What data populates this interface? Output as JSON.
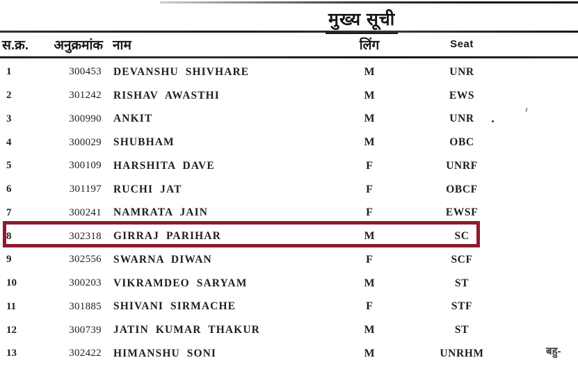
{
  "page": {
    "title": "मुख्य सूची",
    "partial_note": "बहु-"
  },
  "table": {
    "columns": [
      {
        "key": "sno",
        "label": "स.क्र."
      },
      {
        "key": "roll",
        "label": "अनुक्रमांक"
      },
      {
        "key": "name",
        "label": "नाम"
      },
      {
        "key": "gender",
        "label": "लिंग"
      },
      {
        "key": "seat",
        "label": "Seat"
      }
    ],
    "highlight_color": "#8e1c2e",
    "rows": [
      {
        "sno": "1",
        "roll": "300453",
        "name": "DEVANSHU SHIVHARE",
        "gender": "M",
        "seat": "UNR",
        "highlighted": false
      },
      {
        "sno": "2",
        "roll": "301242",
        "name": "RISHAV AWASTHI",
        "gender": "M",
        "seat": "EWS",
        "highlighted": false
      },
      {
        "sno": "3",
        "roll": "300990",
        "name": "ANKIT",
        "gender": "M",
        "seat": "UNR",
        "highlighted": false
      },
      {
        "sno": "4",
        "roll": "300029",
        "name": "SHUBHAM",
        "gender": "M",
        "seat": "OBC",
        "highlighted": false
      },
      {
        "sno": "5",
        "roll": "300109",
        "name": "HARSHITA DAVE",
        "gender": "F",
        "seat": "UNRF",
        "highlighted": false
      },
      {
        "sno": "6",
        "roll": "301197",
        "name": "RUCHI JAT",
        "gender": "F",
        "seat": "OBCF",
        "highlighted": false
      },
      {
        "sno": "7",
        "roll": "300241",
        "name": "NAMRATA JAIN",
        "gender": "F",
        "seat": "EWSF",
        "highlighted": false
      },
      {
        "sno": "8",
        "roll": "302318",
        "name": "GIRRAJ PARIHAR",
        "gender": "M",
        "seat": "SC",
        "highlighted": true
      },
      {
        "sno": "9",
        "roll": "302556",
        "name": "SWARNA DIWAN",
        "gender": "F",
        "seat": "SCF",
        "highlighted": false
      },
      {
        "sno": "10",
        "roll": "300203",
        "name": "VIKRAMDEO SARYAM",
        "gender": "M",
        "seat": "ST",
        "highlighted": false
      },
      {
        "sno": "11",
        "roll": "301885",
        "name": "SHIVANI SIRMACHE",
        "gender": "F",
        "seat": "STF",
        "highlighted": false
      },
      {
        "sno": "12",
        "roll": "300739",
        "name": "JATIN KUMAR THAKUR",
        "gender": "M",
        "seat": "ST",
        "highlighted": false
      },
      {
        "sno": "13",
        "roll": "302422",
        "name": "HIMANSHU SONI",
        "gender": "M",
        "seat": "UNRHM",
        "highlighted": false
      }
    ]
  }
}
